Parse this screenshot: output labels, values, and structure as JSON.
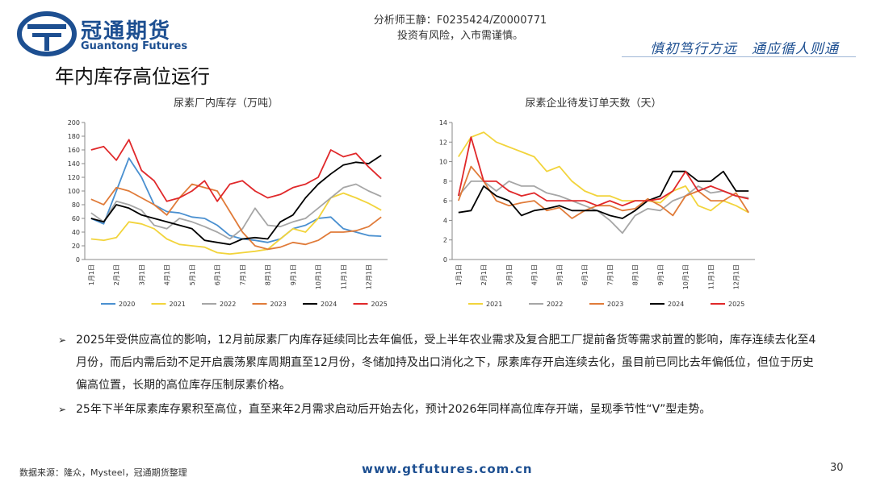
{
  "header": {
    "brand": "冠通期货",
    "brand_en": "Guantong Futures",
    "analyst": "分析师王静：F0235424/Z0000771",
    "risk": "投资有风险，入市需谨慎。",
    "slogan": "慎初笃行方远　通应循人则通",
    "title": "年内库存高位运行"
  },
  "chart_data": [
    {
      "type": "line",
      "title": "尿素厂内库存（万吨）",
      "categories": [
        "1月1日",
        null,
        "2月1日",
        null,
        "3月1日",
        null,
        "4月1日",
        null,
        "5月1日",
        null,
        "6月1日",
        null,
        "7月1日",
        null,
        "8月1日",
        null,
        "9月1日",
        null,
        "10月1日",
        null,
        "11月1日",
        null,
        "12月1日",
        null
      ],
      "ylim": [
        0,
        200
      ],
      "yticks": [
        0,
        20,
        40,
        60,
        80,
        100,
        120,
        140,
        160,
        180,
        200
      ],
      "series": [
        {
          "name": "2020",
          "color": "#4a90d0",
          "values": [
            60,
            52,
            100,
            148,
            120,
            80,
            70,
            68,
            62,
            60,
            50,
            35,
            30,
            28,
            25,
            30,
            45,
            50,
            60,
            62,
            45,
            40,
            35,
            34
          ]
        },
        {
          "name": "2021",
          "color": "#f2d43c",
          "values": [
            30,
            28,
            32,
            55,
            52,
            45,
            30,
            22,
            20,
            18,
            10,
            8,
            10,
            12,
            15,
            30,
            45,
            40,
            60,
            90,
            97,
            90,
            82,
            72
          ]
        },
        {
          "name": "2022",
          "color": "#a6a6a6",
          "values": [
            68,
            55,
            85,
            80,
            72,
            50,
            45,
            60,
            55,
            48,
            40,
            30,
            45,
            75,
            50,
            48,
            55,
            60,
            75,
            90,
            105,
            110,
            100,
            92
          ]
        },
        {
          "name": "2023",
          "color": "#e07b39",
          "values": [
            88,
            80,
            105,
            100,
            90,
            80,
            65,
            90,
            110,
            105,
            100,
            70,
            40,
            20,
            15,
            18,
            25,
            22,
            28,
            40,
            40,
            42,
            48,
            62
          ]
        },
        {
          "name": "2024",
          "color": "#000000",
          "values": [
            60,
            55,
            80,
            75,
            65,
            60,
            55,
            50,
            45,
            28,
            25,
            22,
            30,
            32,
            30,
            55,
            65,
            90,
            110,
            125,
            138,
            142,
            140,
            152
          ]
        },
        {
          "name": "2025",
          "color": "#e0282a",
          "values": [
            160,
            165,
            145,
            175,
            130,
            115,
            85,
            90,
            100,
            115,
            85,
            110,
            115,
            100,
            90,
            95,
            105,
            110,
            120,
            160,
            150,
            155,
            135,
            118
          ]
        }
      ]
    },
    {
      "type": "line",
      "title": "尿素企业待发订单天数（天）",
      "categories": [
        "1月1日",
        null,
        "2月1日",
        null,
        "3月1日",
        null,
        "4月1日",
        null,
        "5月1日",
        null,
        "6月1日",
        null,
        "7月1日",
        null,
        "8月1日",
        null,
        "9月1日",
        null,
        "10月1日",
        null,
        "11月1日",
        null,
        "12月1日",
        null
      ],
      "ylim": [
        0,
        14
      ],
      "yticks": [
        0,
        2,
        4,
        6,
        8,
        10,
        12,
        14
      ],
      "series": [
        {
          "name": "2021",
          "color": "#f2d43c",
          "values": [
            10.5,
            12.5,
            13,
            12,
            11.5,
            11,
            10.5,
            9,
            9.5,
            8,
            7,
            6.5,
            6.5,
            6,
            6,
            6,
            5.8,
            7,
            7.5,
            5.5,
            5,
            6,
            5.5,
            4.8
          ]
        },
        {
          "name": "2022",
          "color": "#a6a6a6",
          "values": [
            6.5,
            8,
            8,
            7,
            8,
            7.5,
            7.5,
            6.8,
            6.5,
            6,
            5.5,
            5,
            4,
            2.7,
            4.5,
            5.2,
            5,
            6,
            6.5,
            7.5,
            6.8,
            7,
            6.5,
            6.3
          ]
        },
        {
          "name": "2023",
          "color": "#e07b39",
          "values": [
            6,
            9.5,
            8,
            6,
            5.5,
            5.8,
            6,
            5,
            5.3,
            4.2,
            5,
            5.5,
            5.5,
            5,
            5.2,
            6.2,
            5.5,
            4.5,
            6.5,
            7,
            6,
            6,
            6.8,
            4.8
          ]
        },
        {
          "name": "2024",
          "color": "#000000",
          "values": [
            4.8,
            5,
            7.5,
            6.5,
            6,
            4.5,
            5,
            5.2,
            5.5,
            5,
            5,
            5,
            4.5,
            4.2,
            5,
            6,
            6.5,
            9,
            9,
            8,
            8,
            9,
            7,
            7
          ]
        },
        {
          "name": "2025",
          "color": "#e0282a",
          "values": [
            6.5,
            12.5,
            8,
            8,
            7,
            6.5,
            6.8,
            6,
            6,
            6,
            6,
            5.5,
            6,
            5.5,
            6,
            6,
            6.2,
            7,
            9,
            7,
            7.5,
            7,
            6.5,
            6.2
          ]
        }
      ]
    }
  ],
  "bullets": [
    "2025年受供应高位的影响，12月前尿素厂内库存延续同比去年偏低，受上半年农业需求及复合肥工厂提前备货等需求前置的影响，库存连续去化至4月份，而后内需后劲不足开启震荡累库周期直至12月份，冬储加持及出口消化之下，尿素库存开启连续去化，虽目前已同比去年偏低位，但位于历史偏高位置，长期的高位库存压制尿素价格。",
    "25年下半年尿素库存累积至高位，直至来年2月需求启动后开始去化，预计2026年同样高位库存开端，呈现季节性“V”型走势。"
  ],
  "footer": {
    "source": "数据来源：隆众，Mysteel，冠通期货整理",
    "site": "www.gtfutures.com.cn",
    "page": "30"
  }
}
